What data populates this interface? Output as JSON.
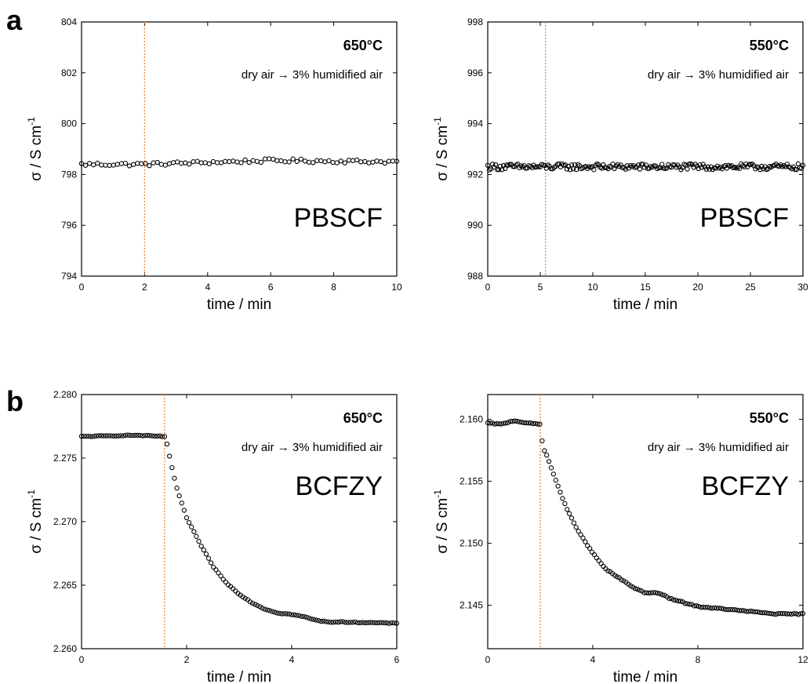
{
  "chart_data": [
    {
      "panel": "a",
      "type": "scatter",
      "temperature": "650°C",
      "condition": "dry air → 3% humidified air",
      "material": "PBSCF",
      "xlabel": "time / min",
      "ylabel": "σ / S cm",
      "ylabel_sup": "-1",
      "xlim": [
        0,
        10
      ],
      "ylim": [
        794,
        804
      ],
      "xticks": [
        0,
        2,
        4,
        6,
        8,
        10
      ],
      "yticks": [
        794,
        796,
        798,
        800,
        802,
        804
      ],
      "yticks_text": [
        "794",
        "796",
        "798",
        "800",
        "802",
        "804"
      ],
      "switch_time": 2.0,
      "series": [
        {
          "x_start": 0,
          "x_end": 10,
          "points": 80,
          "profile": [
            [
              0,
              798.4
            ],
            [
              2,
              798.4
            ],
            [
              6,
              798.55
            ],
            [
              10,
              798.5
            ]
          ],
          "noise": 0.07
        }
      ]
    },
    {
      "panel": "",
      "type": "scatter",
      "temperature": "550°C",
      "condition": "dry air → 3% humidified air",
      "material": "PBSCF",
      "xlabel": "time / min",
      "ylabel": "σ / S cm",
      "ylabel_sup": "-1",
      "xlim": [
        0,
        30
      ],
      "ylim": [
        988,
        998
      ],
      "xticks": [
        0,
        5,
        10,
        15,
        20,
        25,
        30
      ],
      "yticks": [
        988,
        990,
        992,
        994,
        996,
        998
      ],
      "yticks_text": [
        "988",
        "990",
        "992",
        "994",
        "996",
        "998"
      ],
      "switch_time": 5.5,
      "series": [
        {
          "x_start": 0,
          "x_end": 30,
          "points": 200,
          "profile": [
            [
              0,
              992.3
            ],
            [
              30,
              992.3
            ]
          ],
          "noise": 0.12
        }
      ]
    },
    {
      "panel": "b",
      "type": "scatter",
      "temperature": "650°C",
      "condition": "dry air → 3% humidified air",
      "material": "BCFZY",
      "xlabel": "time / min",
      "ylabel": "σ / S cm",
      "ylabel_sup": "-1",
      "xlim": [
        0,
        6
      ],
      "ylim": [
        2.26,
        2.28
      ],
      "xticks": [
        0,
        2,
        4,
        6
      ],
      "yticks": [
        2.26,
        2.265,
        2.27,
        2.275,
        2.28
      ],
      "yticks_text": [
        "2.260",
        "2.265",
        "2.270",
        "2.275",
        "2.280"
      ],
      "switch_time": 1.58,
      "series": [
        {
          "x_start": 0,
          "x_end": 6,
          "points": 130,
          "profile": [
            [
              0,
              2.2767
            ],
            [
              1.0,
              2.2768
            ],
            [
              1.6,
              2.2767
            ],
            [
              1.7,
              2.2746
            ],
            [
              1.8,
              2.2728
            ],
            [
              2.0,
              2.2703
            ],
            [
              2.25,
              2.2683
            ],
            [
              2.5,
              2.2665
            ],
            [
              2.75,
              2.2652
            ],
            [
              3.0,
              2.2643
            ],
            [
              3.25,
              2.2636
            ],
            [
              3.5,
              2.2631
            ],
            [
              3.75,
              2.2628
            ],
            [
              4.0,
              2.2627
            ],
            [
              4.25,
              2.2625
            ],
            [
              4.5,
              2.2622
            ],
            [
              4.75,
              2.2621
            ],
            [
              5.0,
              2.2621
            ],
            [
              6.0,
              2.262
            ]
          ],
          "noise": 3e-05
        }
      ]
    },
    {
      "panel": "",
      "type": "scatter",
      "temperature": "550°C",
      "condition": "dry air → 3% humidified air",
      "material": "BCFZY",
      "xlabel": "time / min",
      "ylabel": "σ / S cm",
      "ylabel_sup": "-1",
      "xlim": [
        0,
        12
      ],
      "ylim": [
        2.1415,
        2.162
      ],
      "xticks": [
        0,
        4,
        8,
        12
      ],
      "yticks": [
        2.145,
        2.15,
        2.155,
        2.16
      ],
      "yticks_text": [
        "2.145",
        "2.150",
        "2.155",
        "2.160"
      ],
      "switch_time": 2.0,
      "series": [
        {
          "x_start": 0,
          "x_end": 12,
          "points": 140,
          "profile": [
            [
              0,
              2.1597
            ],
            [
              0.5,
              2.1596
            ],
            [
              1.0,
              2.1599
            ],
            [
              1.5,
              2.1597
            ],
            [
              2.0,
              2.1596
            ],
            [
              2.1,
              2.1578
            ],
            [
              2.3,
              2.1568
            ],
            [
              2.5,
              2.1556
            ],
            [
              3.0,
              2.1528
            ],
            [
              3.5,
              2.1508
            ],
            [
              4.0,
              2.1492
            ],
            [
              4.5,
              2.1479
            ],
            [
              5.0,
              2.1472
            ],
            [
              5.5,
              2.1465
            ],
            [
              6.0,
              2.146
            ],
            [
              6.5,
              2.146
            ],
            [
              7.0,
              2.1455
            ],
            [
              7.5,
              2.1452
            ],
            [
              8.0,
              2.1449
            ],
            [
              9.0,
              2.1447
            ],
            [
              10.0,
              2.1445
            ],
            [
              11.0,
              2.1443
            ],
            [
              12.0,
              2.1443
            ]
          ],
          "noise": 4e-05
        }
      ]
    }
  ],
  "colors": {
    "marker": "#000000",
    "switch_line": "#e8893a",
    "axis": "#000000"
  }
}
